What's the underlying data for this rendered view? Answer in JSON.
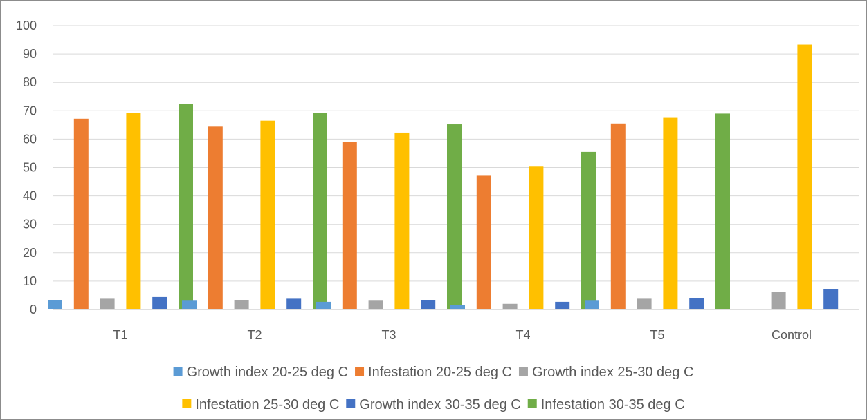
{
  "chart_data": {
    "type": "bar",
    "title": "",
    "xlabel": "",
    "ylabel": "",
    "ylim": [
      0,
      100
    ],
    "ytick_step": 10,
    "grid": true,
    "legend_position": "bottom",
    "categories": [
      "T1",
      "T2",
      "T3",
      "T4",
      "T5",
      "Control"
    ],
    "series": [
      {
        "name": "Growth index 20-25 deg C",
        "color": "#5B9BD5",
        "values": [
          3.4,
          3.1,
          2.7,
          1.6,
          3.1,
          0
        ]
      },
      {
        "name": "Infestation 20-25 deg C",
        "color": "#ED7D31",
        "values": [
          67.2,
          64.4,
          58.9,
          47.1,
          65.5,
          0
        ]
      },
      {
        "name": "Growth index 25-30 deg C",
        "color": "#A5A5A5",
        "values": [
          3.8,
          3.4,
          3.1,
          2.0,
          3.8,
          6.3
        ]
      },
      {
        "name": "Infestation 25-30 deg C",
        "color": "#FFC000",
        "values": [
          69.3,
          66.5,
          62.3,
          50.3,
          67.5,
          93.3
        ]
      },
      {
        "name": "Growth index 30-35 deg C",
        "color": "#4472C4",
        "values": [
          4.4,
          3.8,
          3.4,
          2.7,
          4.1,
          7.2
        ]
      },
      {
        "name": "Infestation 30-35 deg C",
        "color": "#70AD47",
        "values": [
          72.3,
          69.3,
          65.2,
          55.5,
          69.0,
          0
        ]
      }
    ]
  }
}
